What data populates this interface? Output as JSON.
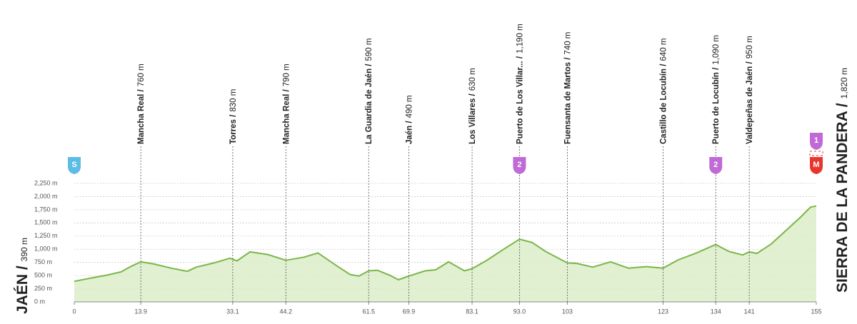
{
  "chart_data": {
    "type": "elevation",
    "x": [
      0,
      3.9,
      6.9,
      9.8,
      12,
      13.9,
      16.6,
      20.3,
      23.6,
      25.5,
      29.2,
      32.5,
      34,
      36.7,
      40.4,
      44.2,
      48,
      50.9,
      54.6,
      57.6,
      59.5,
      61.5,
      63.3,
      65.8,
      67.7,
      69.9,
      73.3,
      75.5,
      78.2,
      81.5,
      83.1,
      86,
      89.7,
      93,
      95.6,
      98.6,
      103,
      105,
      108.3,
      112,
      115.8,
      119.5,
      123,
      126.2,
      130,
      134,
      136.7,
      139.6,
      141,
      142.6,
      145.6,
      148.6,
      151.6,
      153.8,
      155
    ],
    "values": [
      390,
      460,
      510,
      570,
      680,
      760,
      720,
      640,
      580,
      660,
      740,
      830,
      780,
      950,
      900,
      790,
      850,
      930,
      700,
      520,
      490,
      590,
      600,
      510,
      420,
      490,
      590,
      610,
      760,
      590,
      630,
      780,
      1000,
      1190,
      1130,
      950,
      740,
      730,
      660,
      760,
      640,
      670,
      640,
      800,
      930,
      1090,
      960,
      890,
      950,
      920,
      1100,
      1350,
      1600,
      1800,
      1820
    ],
    "color": "#7ab648",
    "fill": "#dcedc8",
    "xlim": [
      0,
      155
    ],
    "ylim": [
      0,
      2250
    ],
    "xticks": [
      0,
      13.9,
      33.1,
      44.2,
      61.5,
      69.9,
      83.1,
      {
        "value": 93,
        "label": "93.0"
      },
      103,
      123,
      134,
      141,
      155
    ],
    "yticks": [
      {
        "value": 0,
        "label": "0 m"
      },
      {
        "value": 250,
        "label": "250 m"
      },
      {
        "value": 500,
        "label": "500 m"
      },
      {
        "value": 750,
        "label": "750 m"
      },
      {
        "value": 1000,
        "label": "1,000 m"
      },
      {
        "value": 1250,
        "label": "1,250 m"
      },
      {
        "value": 1500,
        "label": "1,500 m"
      },
      {
        "value": 1750,
        "label": "1,750 m"
      },
      {
        "value": 2000,
        "label": "2,000 m"
      },
      {
        "value": 2250,
        "label": "2,250 m"
      }
    ],
    "grid": true,
    "start": {
      "name": "JAÉN /",
      "elevation": "390 m"
    },
    "finish": {
      "name": "SIERRA DE LA PANDERA /",
      "elevation": "1,820 m"
    },
    "waypoints": [
      {
        "km": 13.9,
        "name": "Mancha Real /",
        "elevation": "760 m"
      },
      {
        "km": 33.1,
        "name": "Torres /",
        "elevation": "830 m"
      },
      {
        "km": 44.2,
        "name": "Mancha Real /",
        "elevation": "790 m"
      },
      {
        "km": 61.5,
        "name": "La Guardia de Jaén /",
        "elevation": "590 m"
      },
      {
        "km": 69.9,
        "name": "Jaén /",
        "elevation": "490 m"
      },
      {
        "km": 83.1,
        "name": "Los Villares /",
        "elevation": "630 m"
      },
      {
        "km": 93,
        "name": "Puerto de Los Villar... /",
        "elevation": "1,190 m"
      },
      {
        "km": 103,
        "name": "Fuensanta de Martos /",
        "elevation": "740 m"
      },
      {
        "km": 123,
        "name": "Castillo de Locubín /",
        "elevation": "640 m"
      },
      {
        "km": 134,
        "name": "Puerto de Locubín /",
        "elevation": "1,090 m"
      },
      {
        "km": 141,
        "name": "Valdepeñas de Jaén /",
        "elevation": "950 m"
      }
    ],
    "markers": [
      {
        "km": 0,
        "label": "S",
        "color": "#5bbce4"
      },
      {
        "km": 93,
        "label": "2",
        "color": "#c06ad6"
      },
      {
        "km": 134,
        "label": "2",
        "color": "#c06ad6"
      },
      {
        "km": 155,
        "label": "M",
        "color": "#e8362d"
      },
      {
        "km": 155,
        "label": "1",
        "color": "#c06ad6"
      }
    ]
  }
}
